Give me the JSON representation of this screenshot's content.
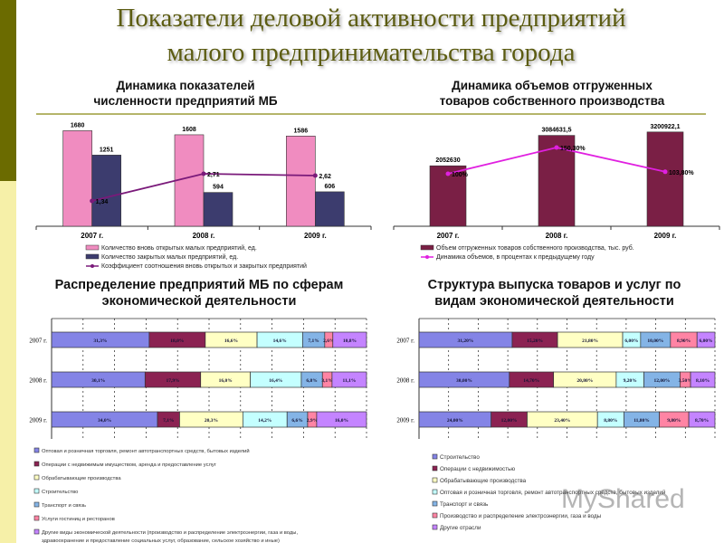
{
  "title": {
    "line1": "Показатели деловой активности предприятий",
    "line2": "малого предпринимательства города"
  },
  "watermark": "MyShared",
  "chart_data": [
    {
      "type": "bar",
      "title_line1": "Динамика показателей",
      "title_line2": "численности предприятий МБ",
      "categories": [
        "2007 г.",
        "2008 г.",
        "2009 г."
      ],
      "series": [
        {
          "name": "Количество вновь открытых малых предприятий, ед.",
          "kind": "bar",
          "color": "#f08cc0",
          "values": [
            1680,
            1608,
            1586
          ],
          "labels": [
            "1680",
            "1608",
            "1586"
          ]
        },
        {
          "name": "Количество закрытых малых предприятий, ед.",
          "kind": "bar",
          "color": "#3c3c6e",
          "values": [
            1251,
            594,
            606
          ],
          "labels": [
            "1251",
            "594",
            "606"
          ]
        },
        {
          "name": "Коэффициент соотношения вновь открытых и закрытых предприятий",
          "kind": "line",
          "color": "#7a1a7a",
          "values": [
            1.34,
            2.71,
            2.62
          ],
          "labels": [
            "1,34",
            "2,71",
            "2,62"
          ]
        }
      ],
      "legend": "bottom",
      "grid": false
    },
    {
      "type": "bar",
      "title_line1": "Динамика объемов отгруженных",
      "title_line2": "товаров собственного производства",
      "categories": [
        "2007 г.",
        "2008 г.",
        "2009 г."
      ],
      "series": [
        {
          "name": "Объем отгруженных товаров собственного производства, тыс. руб.",
          "kind": "bar",
          "color": "#7a1f45",
          "values": [
            2052630,
            3084631.5,
            3200922.1
          ],
          "labels": [
            "2052630",
            "3084631,5",
            "3200922,1"
          ]
        },
        {
          "name": "Динамика объемов, в процентах к предыдущему году",
          "kind": "line",
          "color": "#e020e0",
          "values": [
            100,
            150.3,
            103.8
          ],
          "labels": [
            "100%",
            "150,30%",
            "103,80%"
          ]
        }
      ],
      "legend": "bottom",
      "grid": false
    },
    {
      "type": "bar",
      "stacked": "100%",
      "orientation": "horizontal",
      "title_line1": "Распределение предприятий МБ по сферам",
      "title_line2": "экономической деятельности",
      "categories": [
        "2007 г.",
        "2008 г.",
        "2009 г."
      ],
      "series": [
        {
          "name": "Оптовая и розничная торговля, ремонт автотранспортных средств, бытовых изделий",
          "color": "#8484e6",
          "values": [
            31.3,
            30.1,
            34.0
          ],
          "labels": [
            "31,3%",
            "30,1%",
            "34,0%"
          ]
        },
        {
          "name": "Операции с недвижимым имуществом, аренда и предоставление услуг",
          "color": "#8b2252",
          "values": [
            18.0,
            17.9,
            7.1
          ],
          "labels": [
            "18,0%",
            "17,9%",
            "7,1%"
          ]
        },
        {
          "name": "Обрабатывающие производства",
          "color": "#ffffc4",
          "values": [
            16.6,
            16.0,
            20.3
          ],
          "labels": [
            "16,6%",
            "16,0%",
            "20,3%"
          ]
        },
        {
          "name": "Строительство",
          "color": "#c4ffff",
          "values": [
            14.6,
            16.4,
            14.2
          ],
          "labels": [
            "14,6%",
            "16,4%",
            "14,2%"
          ]
        },
        {
          "name": "Транспорт и связь",
          "color": "#84b4e6",
          "values": [
            7.1,
            6.8,
            6.6
          ],
          "labels": [
            "7,1%",
            "6,8%",
            "6,6%"
          ]
        },
        {
          "name": "Услуги гостиниц и ресторанов",
          "color": "#ff84a4",
          "values": [
            2.6,
            3.1,
            2.9
          ],
          "labels": [
            "2,6%",
            "3,1%",
            "2,9%"
          ]
        },
        {
          "name": "Другие виды экономической деятельности (производство и распределение электроэнергии, газа и воды, здравоохранение и предоставление социальных услуг, образование, сельское хозяйство и иные)",
          "color": "#c484ff",
          "values": [
            10.8,
            11.1,
            16.0
          ],
          "labels": [
            "10,8%",
            "11,1%",
            "16,0%"
          ]
        }
      ],
      "legend": "bottom",
      "grid": true
    },
    {
      "type": "bar",
      "stacked": "100%",
      "orientation": "horizontal",
      "title_line1": "Структура выпуска товаров и услуг по",
      "title_line2": "видам экономической деятельности",
      "categories": [
        "2007 г.",
        "2008 г.",
        "2009 г."
      ],
      "series": [
        {
          "name": "Строительство",
          "color": "#8484e6",
          "values": [
            31.2,
            30.0,
            24.0
          ],
          "labels": [
            "31,20%",
            "30,00%",
            "24,00%"
          ]
        },
        {
          "name": "Операции с недвижимостью",
          "color": "#8b2252",
          "values": [
            15.2,
            14.7,
            12.0
          ],
          "labels": [
            "15,20%",
            "14,70%",
            "12,00%"
          ]
        },
        {
          "name": "Обрабатывающие производства",
          "color": "#ffffc4",
          "values": [
            21.8,
            20.8,
            23.4
          ],
          "labels": [
            "21,80%",
            "20,80%",
            "23,40%"
          ]
        },
        {
          "name": "Оптовая и розничная торговля, ремонт автотранспортных средств, бытовых изделий",
          "color": "#c4ffff",
          "values": [
            6.0,
            9.2,
            8.8
          ],
          "labels": [
            "6,00%",
            "9,20%",
            "8,80%"
          ]
        },
        {
          "name": "Транспорт и связь",
          "color": "#84b4e6",
          "values": [
            10.0,
            12.0,
            11.8
          ],
          "labels": [
            "10,00%",
            "12,00%",
            "11,80%"
          ]
        },
        {
          "name": "Производство и распределение электроэнергии, газа и воды",
          "color": "#ff84a4",
          "values": [
            8.9,
            3.5,
            9.8
          ],
          "labels": [
            "8,90%",
            "3,50%",
            "9,80%"
          ]
        },
        {
          "name": "Другие отрасли",
          "color": "#c484ff",
          "values": [
            6.0,
            8.1,
            8.7
          ],
          "labels": [
            "6,00%",
            "8,10%",
            "8,70%"
          ]
        }
      ],
      "legend": "bottom",
      "grid": true
    }
  ]
}
